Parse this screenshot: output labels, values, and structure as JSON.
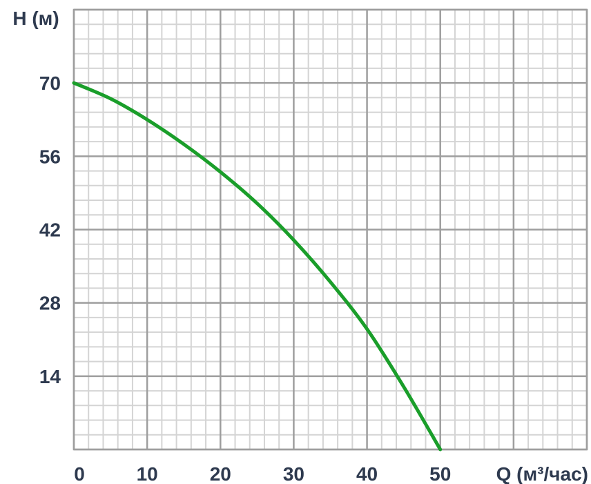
{
  "chart_data": {
    "type": "line",
    "title": "",
    "ylabel": "H (м)",
    "xlabel": "Q (м³/час)",
    "xlim": [
      0,
      70
    ],
    "ylim": [
      0,
      84
    ],
    "x_ticks": [
      0,
      10,
      20,
      30,
      40,
      50
    ],
    "y_ticks": [
      14,
      28,
      42,
      56,
      70
    ],
    "grid": true,
    "colors": {
      "curve": "#1a9e2a",
      "grid_major": "#9e9e9e",
      "grid_minor": "#d4d4d4",
      "text": "#2e3a4f"
    },
    "series": [
      {
        "x": [
          0,
          5,
          10,
          15,
          20,
          25,
          30,
          35,
          40,
          45,
          50
        ],
        "y": [
          70,
          67,
          63,
          58.3,
          53,
          47,
          40,
          32,
          23,
          12,
          0
        ]
      }
    ]
  }
}
